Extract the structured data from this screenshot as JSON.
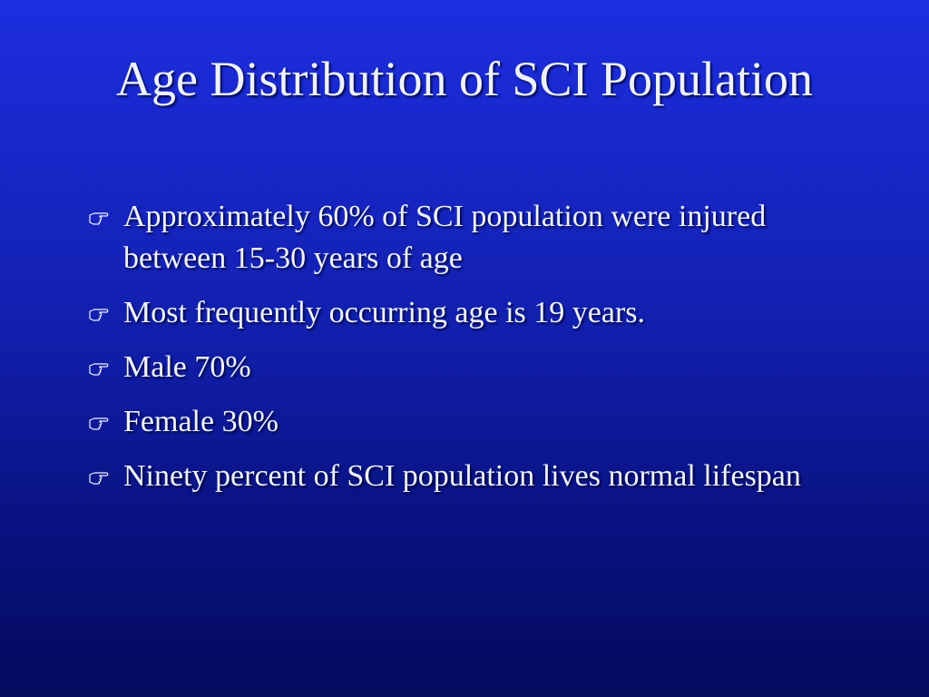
{
  "slide": {
    "title": "Age Distribution of SCI Population",
    "bullets": [
      "Approximately 60% of SCI population were injured between 15-30 years of age",
      "Most frequently occurring age is 19 years.",
      "Male 70%",
      "Female 30%",
      "Ninety percent of SCI population lives normal lifespan"
    ]
  }
}
